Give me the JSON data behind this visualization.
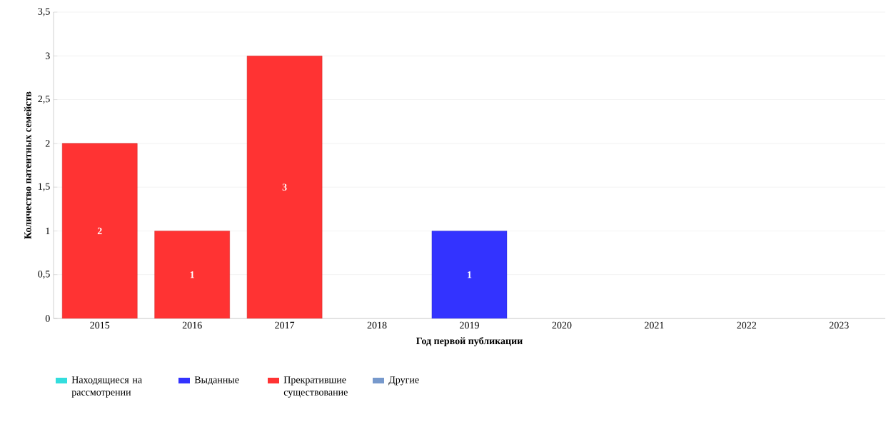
{
  "chart_data": {
    "type": "bar",
    "stacked": true,
    "xlabel": "Год первой публикации",
    "ylabel": "Количество патентных семейств",
    "categories": [
      "2015",
      "2016",
      "2017",
      "2018",
      "2019",
      "2020",
      "2021",
      "2022",
      "2023"
    ],
    "series": [
      {
        "name": "Находящиеся на рассмотрении",
        "color": "#33dddd",
        "values": [
          0,
          0,
          0,
          0,
          0,
          0,
          0,
          0,
          0
        ],
        "value_labels": [
          null,
          null,
          null,
          null,
          null,
          null,
          null,
          null,
          null
        ]
      },
      {
        "name": "Выданные",
        "color": "#3333ff",
        "values": [
          0,
          0,
          0,
          0,
          1,
          0,
          0,
          0,
          0
        ],
        "value_labels": [
          null,
          null,
          null,
          null,
          "1",
          null,
          null,
          null,
          null
        ]
      },
      {
        "name": "Прекратившие существование",
        "color": "#ff3333",
        "values": [
          2,
          1,
          3,
          0,
          0,
          0,
          0,
          0,
          0
        ],
        "value_labels": [
          "2",
          "1",
          "3",
          null,
          null,
          null,
          null,
          null,
          null
        ]
      },
      {
        "name": "Другие",
        "color": "#7799cc",
        "values": [
          0,
          0,
          0,
          0,
          0,
          0,
          0,
          0,
          0
        ],
        "value_labels": [
          null,
          null,
          null,
          null,
          null,
          null,
          null,
          null,
          null
        ]
      }
    ],
    "ylim": [
      0,
      3.5
    ],
    "yticks": [
      0,
      {
        "value": 0.5,
        "label": "0,5"
      },
      1,
      {
        "value": 1.5,
        "label": "1,5"
      },
      2,
      {
        "value": 2.5,
        "label": "2,5"
      },
      3,
      {
        "value": 3.5,
        "label": "3,5"
      }
    ],
    "grid": "y",
    "legend": "bottom"
  }
}
